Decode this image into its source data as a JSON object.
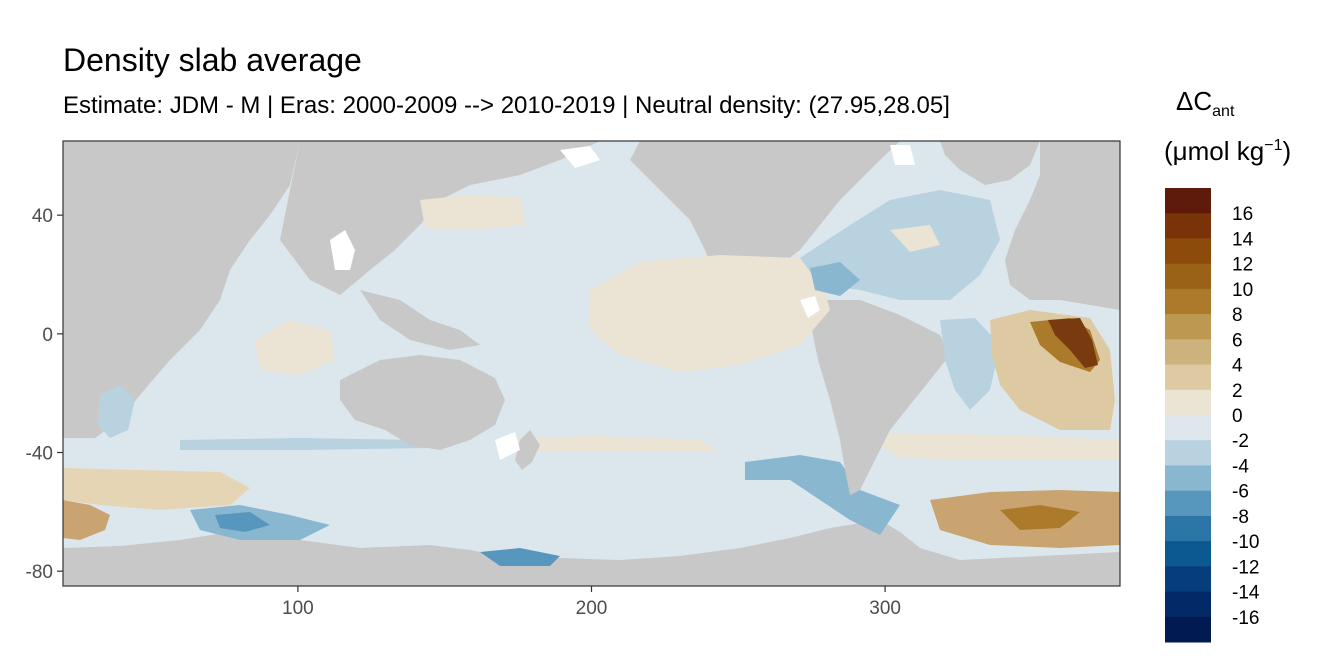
{
  "title": "Density slab average",
  "subtitle": "Estimate: JDM - M | Eras: 2000-2009 --> 2010-2019 | Neutral density: (27.95,28.05]",
  "legend": {
    "title_symbol": "ΔC",
    "title_sub": "ant",
    "unit_prefix": "(μmol kg",
    "unit_sup": "−1",
    "unit_suffix": ")",
    "labels": [
      "16",
      "14",
      "12",
      "10",
      "8",
      "6",
      "4",
      "2",
      "0",
      "-2",
      "-4",
      "-6",
      "-8",
      "-10",
      "-12",
      "-14",
      "-16"
    ],
    "colors": [
      "#5e1a0a",
      "#7a3208",
      "#8c4a0b",
      "#9a6216",
      "#ab7a2b",
      "#bd9850",
      "#ccb27c",
      "#ddcaa3",
      "#ebe4d4",
      "#dde7ec",
      "#b8d2e0",
      "#8ab7d0",
      "#5897bd",
      "#2c75a7",
      "#0c5890",
      "#053e7b",
      "#032a66",
      "#021a52"
    ]
  },
  "map_colors": {
    "land": "#c8c8c8",
    "nodata": "#ffffff",
    "near_zero_negative": "#dce7ed",
    "near_zero_positive": "#ebe3d4",
    "accent_brown": "#7a3a10",
    "accent_blue": "#2c75a7"
  },
  "chart_data": {
    "type": "heatmap",
    "title": "Density slab average",
    "subtitle": "Estimate: JDM - M | Eras: 2000-2009 --> 2010-2019 | Neutral density: (27.95,28.05]",
    "xlabel": "",
    "ylabel": "",
    "xlim": [
      20,
      380
    ],
    "ylim": [
      -85,
      65
    ],
    "x_ticks": [
      "100",
      "200",
      "300"
    ],
    "x_tick_values": [
      100,
      200,
      300
    ],
    "y_ticks": [
      "40",
      "0",
      "-40",
      "-80"
    ],
    "y_tick_values": [
      40,
      0,
      -40,
      -80
    ],
    "color_scale": {
      "min": -16,
      "max": 16,
      "step": 2,
      "palette": "BrBG diverging"
    },
    "grid": true
  }
}
